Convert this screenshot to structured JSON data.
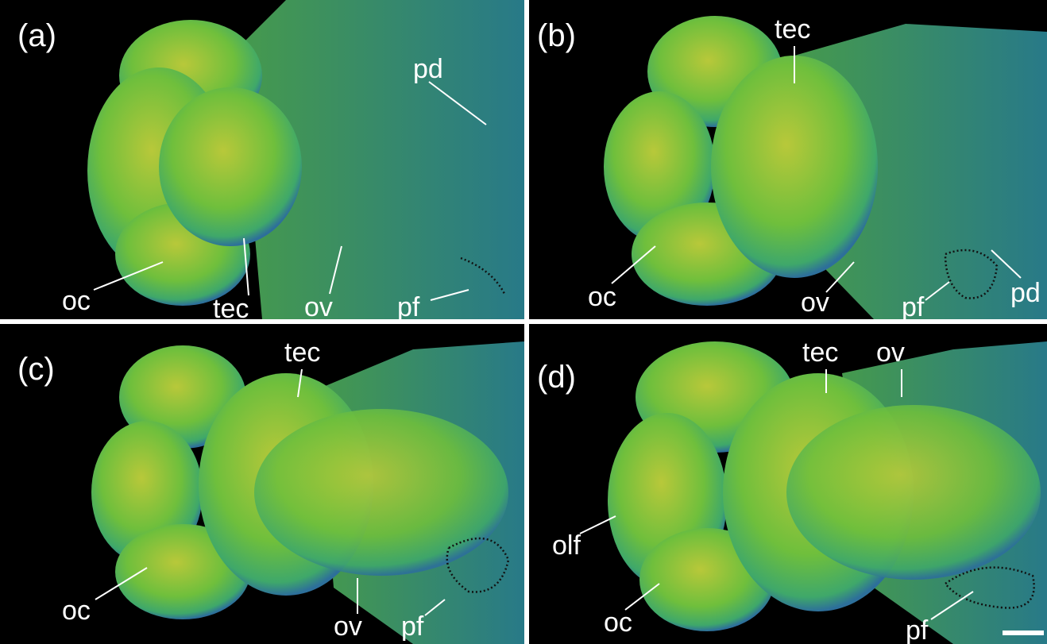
{
  "panels": [
    {
      "letter": "(a)",
      "labels": [
        "pd",
        "oc",
        "tec",
        "ov",
        "pf"
      ]
    },
    {
      "letter": "(b)",
      "labels": [
        "tec",
        "oc",
        "ov",
        "pf",
        "pd"
      ]
    },
    {
      "letter": "(c)",
      "labels": [
        "tec",
        "oc",
        "ov",
        "pf"
      ]
    },
    {
      "letter": "(d)",
      "labels": [
        "tec",
        "ov",
        "olf",
        "oc",
        "pf"
      ]
    }
  ]
}
